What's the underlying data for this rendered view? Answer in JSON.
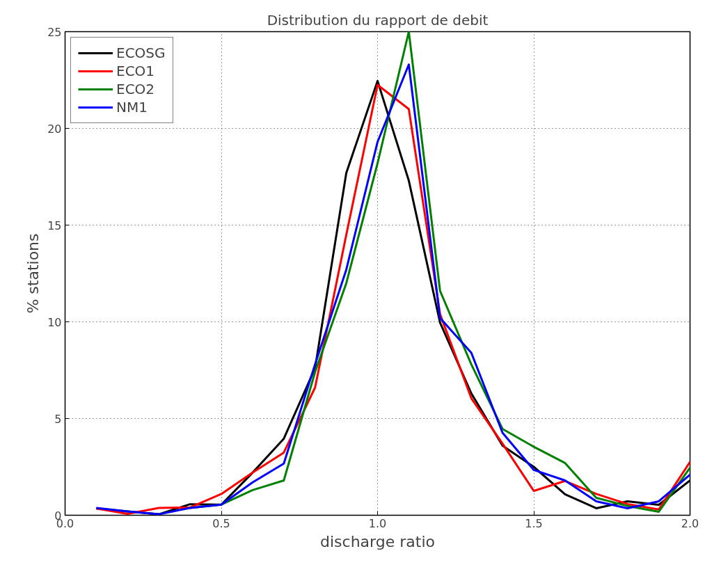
{
  "chart_data": {
    "type": "line",
    "title": "Distribution du rapport de debit",
    "xlabel": "discharge ratio",
    "ylabel": "% stations",
    "x": [
      0.1,
      0.2,
      0.3,
      0.4,
      0.5,
      0.6,
      0.7,
      0.8,
      0.9,
      1.0,
      1.1,
      1.2,
      1.3,
      1.4,
      1.5,
      1.6,
      1.7,
      1.8,
      1.9,
      2.0
    ],
    "series": [
      {
        "name": "ECOSG",
        "color": "#000000",
        "values": [
          0.35,
          0.2,
          0.05,
          0.57,
          0.55,
          2.2,
          3.96,
          7.6,
          17.7,
          22.45,
          17.3,
          9.96,
          6.3,
          3.6,
          2.5,
          1.08,
          0.36,
          0.72,
          0.54,
          1.8
        ]
      },
      {
        "name": "ECO1",
        "color": "#ff0000",
        "values": [
          0.35,
          0.07,
          0.38,
          0.4,
          1.1,
          2.2,
          3.24,
          6.6,
          14.5,
          22.25,
          21.0,
          10.4,
          6.05,
          3.7,
          1.26,
          1.77,
          1.1,
          0.58,
          0.3,
          2.76
        ]
      },
      {
        "name": "ECO2",
        "color": "#008000",
        "values": [
          null,
          null,
          null,
          0.38,
          0.55,
          1.3,
          1.8,
          7.4,
          12.0,
          18.2,
          25.0,
          11.6,
          7.8,
          4.46,
          3.54,
          2.7,
          0.9,
          0.48,
          0.18,
          2.46
        ]
      },
      {
        "name": "NM1",
        "color": "#0000ff",
        "values": [
          0.38,
          0.2,
          0.05,
          0.38,
          0.55,
          1.7,
          2.67,
          7.8,
          12.7,
          19.3,
          23.3,
          10.2,
          8.4,
          4.26,
          2.34,
          1.8,
          0.72,
          0.36,
          0.72,
          2.1
        ]
      }
    ],
    "xlim": [
      0.0,
      2.0
    ],
    "ylim": [
      0,
      25
    ],
    "xticks": [
      {
        "value": 0.0,
        "label": "0.0"
      },
      {
        "value": 0.5,
        "label": "0.5"
      },
      {
        "value": 1.0,
        "label": "1.0"
      },
      {
        "value": 1.5,
        "label": "1.5"
      },
      {
        "value": 2.0,
        "label": "2.0"
      }
    ],
    "yticks": [
      0,
      5,
      10,
      15,
      20,
      25
    ],
    "grid": true,
    "legend": "top left",
    "line_style": "solid"
  }
}
